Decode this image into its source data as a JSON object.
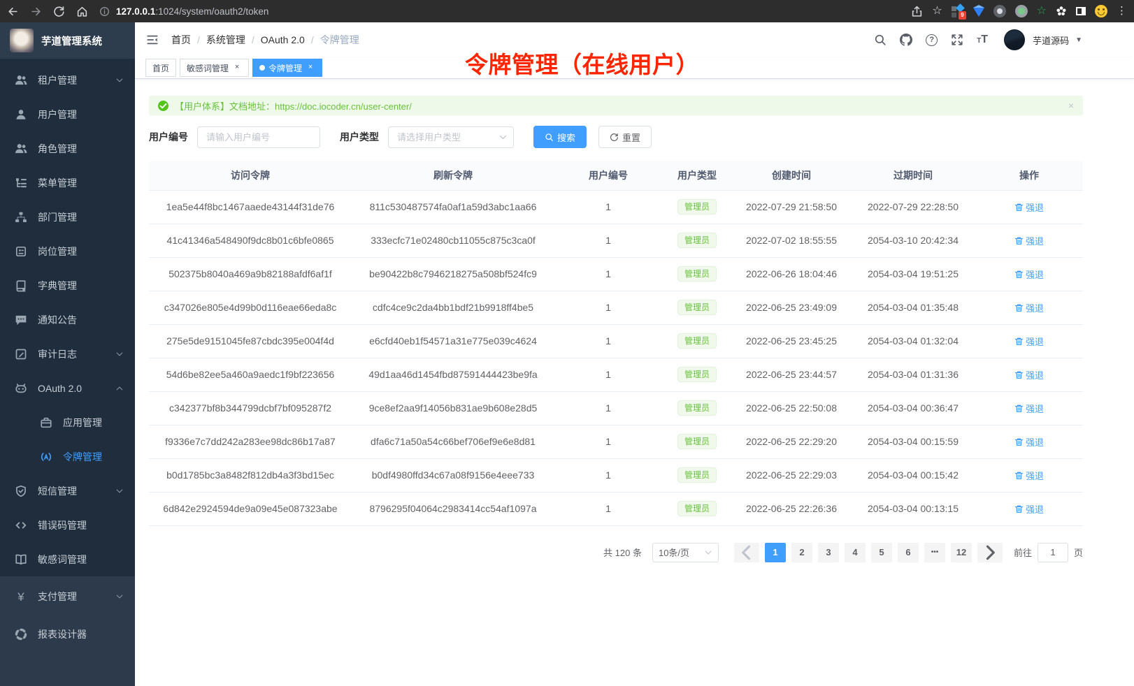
{
  "colors": {
    "primary": "#409eff",
    "success": "#67c23a",
    "annotation_red": "#fb2600",
    "sidebar_bg": "#1f2d3d",
    "sidebar_bottom_bg": "#2d3a4b",
    "alert_bg": "#eef9e9"
  },
  "browser": {
    "url_host": "127.0.0.1",
    "url_rest": ":1024/system/oauth2/token",
    "extension_badge": "9",
    "nav_icons": [
      "back-icon",
      "forward-icon",
      "reload-icon",
      "home-icon",
      "info-icon",
      "share-icon",
      "star-icon",
      "menu-kebab-icon"
    ]
  },
  "sidebar": {
    "logo_title": "芋道管理系统",
    "items": [
      {
        "id": "tenant",
        "icon": "users-icon",
        "label": "租户管理",
        "arrow": "down"
      },
      {
        "id": "user",
        "icon": "user-icon",
        "label": "用户管理"
      },
      {
        "id": "role",
        "icon": "users-icon",
        "label": "角色管理"
      },
      {
        "id": "menu",
        "icon": "tree-list-icon",
        "label": "菜单管理"
      },
      {
        "id": "dept",
        "icon": "org-chart-icon",
        "label": "部门管理"
      },
      {
        "id": "post",
        "icon": "id-badge-icon",
        "label": "岗位管理"
      },
      {
        "id": "dict",
        "icon": "dictionary-icon",
        "label": "字典管理"
      },
      {
        "id": "notice",
        "icon": "message-icon",
        "label": "通知公告"
      },
      {
        "id": "audit-log",
        "icon": "edit-log-icon",
        "label": "审计日志",
        "arrow": "down"
      },
      {
        "id": "oauth2",
        "icon": "robot-icon",
        "label": "OAuth 2.0",
        "arrow": "up"
      },
      {
        "id": "oauth2-app",
        "icon": "briefcase-icon",
        "label": "应用管理",
        "sub": true
      },
      {
        "id": "oauth2-token",
        "icon": "signal-icon",
        "label": "令牌管理",
        "sub": true,
        "active": true
      },
      {
        "id": "sms",
        "icon": "shield-icon",
        "label": "短信管理",
        "arrow": "down"
      },
      {
        "id": "error-code",
        "icon": "code-icon",
        "label": "错误码管理"
      },
      {
        "id": "sensitive",
        "icon": "book-open-icon",
        "label": "敏感词管理"
      }
    ],
    "bottom_items": [
      {
        "id": "pay",
        "icon": "yuan-icon",
        "label": "支付管理",
        "arrow": "down"
      },
      {
        "id": "report",
        "icon": "lifering-icon",
        "label": "报表设计器"
      }
    ]
  },
  "header": {
    "breadcrumb": [
      "首页",
      "系统管理",
      "OAuth 2.0",
      "令牌管理"
    ],
    "icons": [
      "search-icon",
      "github-icon",
      "help-icon",
      "fullscreen-icon",
      "font-size-icon"
    ],
    "username": "芋道源码"
  },
  "tabs": [
    {
      "label": "首页",
      "closable": false,
      "active": false
    },
    {
      "label": "敏感词管理",
      "closable": true,
      "active": false
    },
    {
      "label": "令牌管理",
      "closable": true,
      "active": true
    }
  ],
  "annotation": "令牌管理（在线用户）",
  "alert": {
    "text": "【用户体系】文档地址：",
    "link": "https://doc.iocoder.cn/user-center/"
  },
  "filters": {
    "user_id_label": "用户编号",
    "user_id_placeholder": "请输入用户编号",
    "user_type_label": "用户类型",
    "user_type_placeholder": "请选择用户类型",
    "search_label": "搜索",
    "reset_label": "重置"
  },
  "table": {
    "headers": [
      "访问令牌",
      "刷新令牌",
      "用户编号",
      "用户类型",
      "创建时间",
      "过期时间",
      "操作"
    ],
    "action_label": "强退",
    "rows": [
      {
        "access_token": "1ea5e44f8bc1467aaede43144f31de76",
        "refresh_token": "811c530487574fa0af1a59d3abc1aa66",
        "user_id": "1",
        "user_type": "管理员",
        "created_at": "2022-07-29 21:58:50",
        "expires_at": "2022-07-29 22:28:50"
      },
      {
        "access_token": "41c41346a548490f9dc8b01c6bfe0865",
        "refresh_token": "333ecfc71e02480cb11055c875c3ca0f",
        "user_id": "1",
        "user_type": "管理员",
        "created_at": "2022-07-02 18:55:55",
        "expires_at": "2054-03-10 20:42:34"
      },
      {
        "access_token": "502375b8040a469a9b82188afdf6af1f",
        "refresh_token": "be90422b8c7946218275a508bf524fc9",
        "user_id": "1",
        "user_type": "管理员",
        "created_at": "2022-06-26 18:04:46",
        "expires_at": "2054-03-04 19:51:25"
      },
      {
        "access_token": "c347026e805e4d99b0d116eae66eda8c",
        "refresh_token": "cdfc4ce9c2da4bb1bdf21b9918ff4be5",
        "user_id": "1",
        "user_type": "管理员",
        "created_at": "2022-06-25 23:49:09",
        "expires_at": "2054-03-04 01:35:48"
      },
      {
        "access_token": "275e5de9151045fe87cbdc395e004f4d",
        "refresh_token": "e6cfd40eb1f54571a31e775e039c4624",
        "user_id": "1",
        "user_type": "管理员",
        "created_at": "2022-06-25 23:45:25",
        "expires_at": "2054-03-04 01:32:04"
      },
      {
        "access_token": "54d6be82ee5a460a9aedc1f9bf223656",
        "refresh_token": "49d1aa46d1454fbd87591444423be9fa",
        "user_id": "1",
        "user_type": "管理员",
        "created_at": "2022-06-25 23:44:57",
        "expires_at": "2054-03-04 01:31:36"
      },
      {
        "access_token": "c342377bf8b344799dcbf7bf095287f2",
        "refresh_token": "9ce8ef2aa9f14056b831ae9b608e28d5",
        "user_id": "1",
        "user_type": "管理员",
        "created_at": "2022-06-25 22:50:08",
        "expires_at": "2054-03-04 00:36:47"
      },
      {
        "access_token": "f9336e7c7dd242a283ee98dc86b17a87",
        "refresh_token": "dfa6c71a50a54c66bef706ef9e6e8d81",
        "user_id": "1",
        "user_type": "管理员",
        "created_at": "2022-06-25 22:29:20",
        "expires_at": "2054-03-04 00:15:59"
      },
      {
        "access_token": "b0d1785bc3a8482f812db4a3f3bd15ec",
        "refresh_token": "b0df4980ffd34c67a08f9156e4eee733",
        "user_id": "1",
        "user_type": "管理员",
        "created_at": "2022-06-25 22:29:03",
        "expires_at": "2054-03-04 00:15:42"
      },
      {
        "access_token": "6d842e2924594de9a09e45e087323abe",
        "refresh_token": "8796295f04064c2983414cc54af1097a",
        "user_id": "1",
        "user_type": "管理员",
        "created_at": "2022-06-25 22:26:36",
        "expires_at": "2054-03-04 00:13:15"
      }
    ]
  },
  "pagination": {
    "total": "共 120 条",
    "page_size": "10条/页",
    "pages": [
      "1",
      "2",
      "3",
      "4",
      "5",
      "6",
      "...",
      "12"
    ],
    "active_page": "1",
    "goto_label": "前往",
    "goto_value": "1",
    "page_unit": "页"
  }
}
